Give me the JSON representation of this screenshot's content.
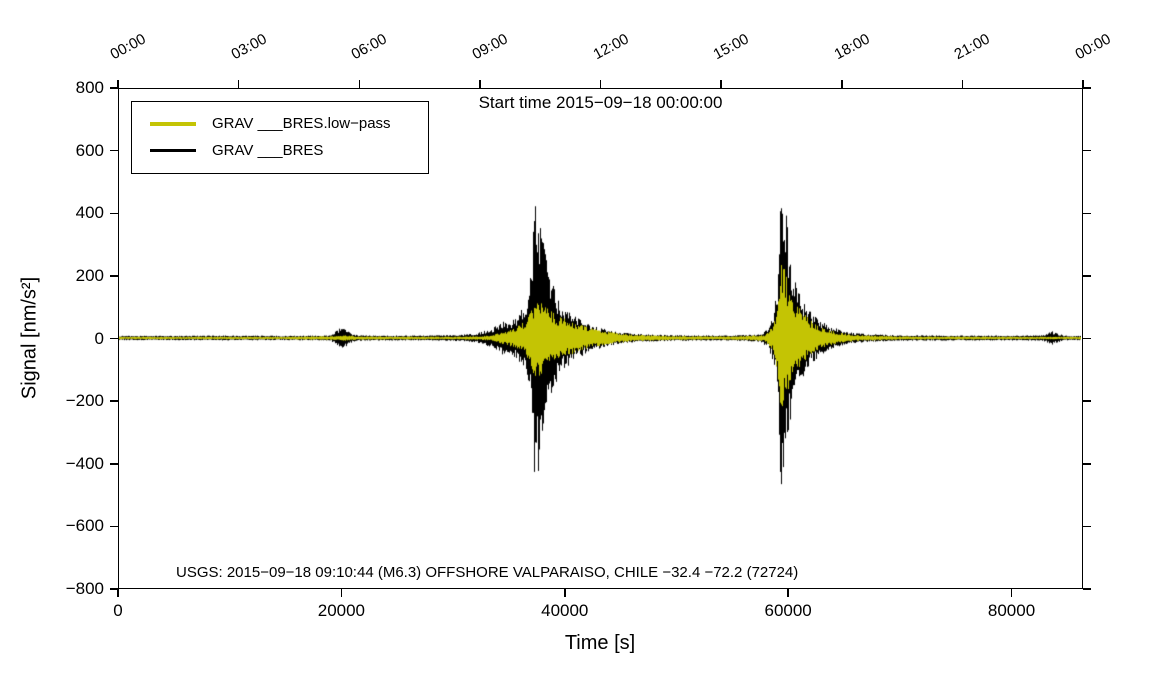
{
  "figure": {
    "background": "#ffffff",
    "frame_color": "#000000"
  },
  "chart_data": {
    "type": "line",
    "title": "Start time 2015−09−18 00:00:00",
    "xlabel": "Time [s]",
    "ylabel": "Signal [nm/s²]",
    "annotation": "USGS: 2015−09−18 09:10:44 (M6.3) OFFSHORE VALPARAISO, CHILE −32.4 −72.2 (72724)",
    "xlim": [
      0,
      86400
    ],
    "ylim": [
      -800,
      800
    ],
    "x_ticks": {
      "values": [
        0,
        20000,
        40000,
        60000,
        80000
      ],
      "labels": [
        "0",
        "20000",
        "40000",
        "60000",
        "80000"
      ]
    },
    "y_ticks": {
      "values": [
        -800,
        -600,
        -400,
        -200,
        0,
        200,
        400,
        600,
        800
      ],
      "labels": [
        "−800",
        "−600",
        "−400",
        "−200",
        "0",
        "200",
        "400",
        "600",
        "800"
      ]
    },
    "top_ticks": {
      "seconds": [
        0,
        10800,
        21600,
        32400,
        43200,
        54000,
        64800,
        75600,
        86400
      ],
      "labels": [
        "00:00",
        "03:00",
        "06:00",
        "09:00",
        "12:00",
        "15:00",
        "18:00",
        "21:00",
        "00:00"
      ]
    },
    "legend": [
      {
        "label": "GRAV ___BRES.low−pass",
        "color": "#c4c404"
      },
      {
        "label": "GRAV ___BRES",
        "color": "#000000"
      }
    ],
    "grid": false,
    "legend_position": "top-left-inside",
    "series": [
      {
        "name": "GRAV ___BRES.low−pass",
        "color": "#c4c404",
        "envelope_note": "piecewise-linear amplitude envelope [time_s, amplitude_nm_s2], waveform oscillates within ±amplitude",
        "envelope": [
          [
            0,
            4
          ],
          [
            15000,
            4
          ],
          [
            19500,
            6
          ],
          [
            19900,
            10
          ],
          [
            20600,
            8
          ],
          [
            21500,
            5
          ],
          [
            30000,
            4
          ],
          [
            32500,
            6
          ],
          [
            33500,
            9
          ],
          [
            34500,
            20
          ],
          [
            35500,
            30
          ],
          [
            36500,
            55
          ],
          [
            37000,
            90
          ],
          [
            37400,
            130
          ],
          [
            37800,
            120
          ],
          [
            38500,
            95
          ],
          [
            39500,
            70
          ],
          [
            40500,
            55
          ],
          [
            42000,
            35
          ],
          [
            44000,
            20
          ],
          [
            46000,
            11
          ],
          [
            50000,
            6
          ],
          [
            55000,
            5
          ],
          [
            58000,
            10
          ],
          [
            58800,
            40
          ],
          [
            59200,
            120
          ],
          [
            59500,
            250
          ],
          [
            59800,
            230
          ],
          [
            60200,
            150
          ],
          [
            61000,
            100
          ],
          [
            62000,
            60
          ],
          [
            63000,
            35
          ],
          [
            64500,
            18
          ],
          [
            66000,
            10
          ],
          [
            70000,
            5
          ],
          [
            80000,
            4
          ],
          [
            86400,
            4
          ]
        ]
      },
      {
        "name": "GRAV ___BRES",
        "color": "#000000",
        "envelope_note": "piecewise-linear amplitude envelope [time_s, amplitude_nm_s2], waveform oscillates within ±amplitude",
        "envelope": [
          [
            0,
            7
          ],
          [
            5000,
            7
          ],
          [
            10000,
            8
          ],
          [
            15000,
            7
          ],
          [
            19000,
            8
          ],
          [
            19800,
            30
          ],
          [
            20200,
            32
          ],
          [
            21000,
            12
          ],
          [
            22000,
            8
          ],
          [
            28000,
            8
          ],
          [
            30500,
            10
          ],
          [
            32000,
            14
          ],
          [
            33500,
            30
          ],
          [
            34500,
            55
          ],
          [
            35000,
            45
          ],
          [
            35800,
            70
          ],
          [
            36500,
            110
          ],
          [
            37000,
            200
          ],
          [
            37300,
            440
          ],
          [
            37600,
            450
          ],
          [
            38000,
            330
          ],
          [
            38500,
            230
          ],
          [
            39200,
            150
          ],
          [
            40000,
            100
          ],
          [
            41000,
            70
          ],
          [
            42000,
            50
          ],
          [
            43500,
            30
          ],
          [
            45000,
            18
          ],
          [
            47000,
            12
          ],
          [
            50000,
            9
          ],
          [
            55000,
            8
          ],
          [
            57500,
            12
          ],
          [
            58300,
            30
          ],
          [
            58800,
            80
          ],
          [
            59200,
            180
          ],
          [
            59400,
            510
          ],
          [
            59700,
            520
          ],
          [
            60000,
            380
          ],
          [
            60500,
            230
          ],
          [
            61200,
            140
          ],
          [
            62000,
            90
          ],
          [
            63000,
            55
          ],
          [
            64000,
            35
          ],
          [
            65500,
            20
          ],
          [
            67000,
            13
          ],
          [
            70000,
            9
          ],
          [
            75000,
            8
          ],
          [
            80000,
            8
          ],
          [
            83000,
            9
          ],
          [
            83800,
            22
          ],
          [
            84300,
            14
          ],
          [
            85000,
            8
          ],
          [
            86400,
            7
          ]
        ]
      }
    ],
    "events": [
      {
        "time_s": 37500,
        "peak_nm_s2": 450,
        "trough_nm_s2": -440
      },
      {
        "time_s": 59550,
        "peak_nm_s2": 520,
        "trough_nm_s2": -530
      }
    ]
  }
}
